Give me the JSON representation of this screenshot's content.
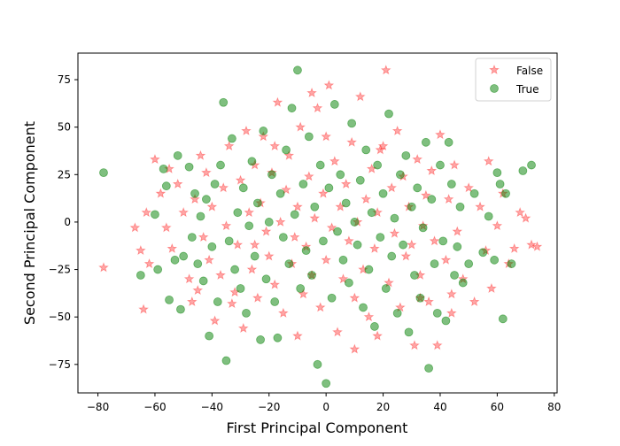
{
  "chart_data": {
    "type": "scatter",
    "xlabel": "First Principal Component",
    "ylabel": "Second Principal Component",
    "xlim": [
      -87,
      81
    ],
    "ylim": [
      -90,
      89
    ],
    "x_ticks": [
      -80,
      -60,
      -40,
      -20,
      0,
      20,
      40,
      60,
      80
    ],
    "y_ticks": [
      -75,
      -50,
      -25,
      0,
      25,
      50,
      75
    ],
    "legend_position": "top-right",
    "series": [
      {
        "name": "False",
        "marker": "star",
        "color": "#ff0000",
        "alpha": 0.35,
        "points": [
          [
            -78,
            -24
          ],
          [
            -67,
            -3
          ],
          [
            -65,
            -15
          ],
          [
            -64,
            -46
          ],
          [
            -62,
            -22
          ],
          [
            -60,
            33
          ],
          [
            -58,
            15
          ],
          [
            -56,
            -3
          ],
          [
            -54,
            -14
          ],
          [
            -52,
            20
          ],
          [
            -50,
            5
          ],
          [
            -48,
            -30
          ],
          [
            -46,
            12
          ],
          [
            -45,
            -36
          ],
          [
            -44,
            35
          ],
          [
            -43,
            -8
          ],
          [
            -42,
            26
          ],
          [
            -41,
            -20
          ],
          [
            -40,
            8
          ],
          [
            -39,
            -52
          ],
          [
            -37,
            -28
          ],
          [
            -36,
            18
          ],
          [
            -35,
            -2
          ],
          [
            -34,
            40
          ],
          [
            -33,
            -43
          ],
          [
            -31,
            -12
          ],
          [
            -30,
            22
          ],
          [
            -29,
            -56
          ],
          [
            -27,
            5
          ],
          [
            -26,
            -25
          ],
          [
            -25,
            30
          ],
          [
            -24,
            -40
          ],
          [
            -23,
            10
          ],
          [
            -22,
            45
          ],
          [
            -21,
            -5
          ],
          [
            -20,
            -18
          ],
          [
            -19,
            26
          ],
          [
            -18,
            -33
          ],
          [
            -17,
            63
          ],
          [
            -16,
            0
          ],
          [
            -15,
            -48
          ],
          [
            -14,
            17
          ],
          [
            -13,
            35
          ],
          [
            -12,
            -22
          ],
          [
            -11,
            -8
          ],
          [
            -10,
            8
          ],
          [
            -9,
            50
          ],
          [
            -8,
            -38
          ],
          [
            -7,
            -13
          ],
          [
            -6,
            24
          ],
          [
            -5,
            -28
          ],
          [
            -4,
            2
          ],
          [
            -3,
            60
          ],
          [
            -2,
            -45
          ],
          [
            -1,
            15
          ],
          [
            0,
            -20
          ],
          [
            1,
            72
          ],
          [
            2,
            -3
          ],
          [
            3,
            32
          ],
          [
            4,
            -58
          ],
          [
            5,
            8
          ],
          [
            6,
            -30
          ],
          [
            7,
            20
          ],
          [
            8,
            -10
          ],
          [
            9,
            42
          ],
          [
            10,
            -40
          ],
          [
            11,
            0
          ],
          [
            12,
            66
          ],
          [
            13,
            -25
          ],
          [
            14,
            12
          ],
          [
            15,
            -50
          ],
          [
            16,
            28
          ],
          [
            17,
            -14
          ],
          [
            18,
            5
          ],
          [
            19,
            38
          ],
          [
            21,
            80
          ],
          [
            22,
            -32
          ],
          [
            23,
            18
          ],
          [
            24,
            -6
          ],
          [
            25,
            48
          ],
          [
            26,
            -45
          ],
          [
            27,
            24
          ],
          [
            28,
            -18
          ],
          [
            29,
            8
          ],
          [
            31,
            -65
          ],
          [
            32,
            33
          ],
          [
            33,
            -28
          ],
          [
            34,
            -2
          ],
          [
            35,
            14
          ],
          [
            36,
            -42
          ],
          [
            37,
            27
          ],
          [
            38,
            -10
          ],
          [
            39,
            -65
          ],
          [
            40,
            46
          ],
          [
            42,
            -20
          ],
          [
            43,
            12
          ],
          [
            44,
            -48
          ],
          [
            45,
            30
          ],
          [
            46,
            -5
          ],
          [
            48,
            -30
          ],
          [
            50,
            18
          ],
          [
            52,
            -42
          ],
          [
            54,
            8
          ],
          [
            56,
            -15
          ],
          [
            58,
            -35
          ],
          [
            60,
            -2
          ],
          [
            62,
            15
          ],
          [
            64,
            -22
          ],
          [
            66,
            -14
          ],
          [
            68,
            5
          ],
          [
            70,
            2
          ],
          [
            72,
            -12
          ],
          [
            74,
            -13
          ],
          [
            -63,
            5
          ],
          [
            -47,
            -42
          ],
          [
            -32,
            -37
          ],
          [
            -28,
            48
          ],
          [
            -18,
            40
          ],
          [
            0,
            45
          ],
          [
            18,
            -60
          ],
          [
            30,
            -12
          ],
          [
            44,
            -38
          ],
          [
            57,
            32
          ],
          [
            -10,
            -60
          ],
          [
            10,
            -67
          ],
          [
            -55,
            28
          ],
          [
            20,
            40
          ],
          [
            -25,
            -12
          ],
          [
            33,
            -40
          ],
          [
            -5,
            68
          ]
        ]
      },
      {
        "name": "True",
        "marker": "circle",
        "color": "#008000",
        "alpha": 0.5,
        "points": [
          [
            -78,
            26
          ],
          [
            -65,
            -28
          ],
          [
            -60,
            4
          ],
          [
            -59,
            -25
          ],
          [
            -57,
            28
          ],
          [
            -56,
            19
          ],
          [
            -55,
            -41
          ],
          [
            -53,
            -20
          ],
          [
            -52,
            35
          ],
          [
            -51,
            -46
          ],
          [
            -50,
            -18
          ],
          [
            -48,
            29
          ],
          [
            -47,
            -8
          ],
          [
            -46,
            15
          ],
          [
            -45,
            -22
          ],
          [
            -44,
            3
          ],
          [
            -43,
            -31
          ],
          [
            -42,
            12
          ],
          [
            -40,
            -13
          ],
          [
            -39,
            20
          ],
          [
            -38,
            -42
          ],
          [
            -37,
            30
          ],
          [
            -36,
            63
          ],
          [
            -35,
            -73
          ],
          [
            -34,
            -10
          ],
          [
            -33,
            44
          ],
          [
            -32,
            -25
          ],
          [
            -31,
            5
          ],
          [
            -30,
            -35
          ],
          [
            -29,
            18
          ],
          [
            -28,
            -48
          ],
          [
            -27,
            -2
          ],
          [
            -26,
            32
          ],
          [
            -25,
            -18
          ],
          [
            -24,
            10
          ],
          [
            -23,
            -62
          ],
          [
            -22,
            48
          ],
          [
            -21,
            -30
          ],
          [
            -20,
            0
          ],
          [
            -19,
            25
          ],
          [
            -18,
            -42
          ],
          [
            -17,
            -61
          ],
          [
            -16,
            15
          ],
          [
            -15,
            -8
          ],
          [
            -14,
            38
          ],
          [
            -13,
            -22
          ],
          [
            -12,
            60
          ],
          [
            -11,
            4
          ],
          [
            -10,
            80
          ],
          [
            -9,
            -35
          ],
          [
            -8,
            20
          ],
          [
            -7,
            -15
          ],
          [
            -6,
            45
          ],
          [
            -5,
            -28
          ],
          [
            -4,
            8
          ],
          [
            -3,
            -75
          ],
          [
            -2,
            30
          ],
          [
            -1,
            -10
          ],
          [
            0,
            -85
          ],
          [
            1,
            18
          ],
          [
            2,
            -40
          ],
          [
            3,
            62
          ],
          [
            4,
            -5
          ],
          [
            5,
            25
          ],
          [
            6,
            -20
          ],
          [
            7,
            10
          ],
          [
            8,
            -32
          ],
          [
            9,
            52
          ],
          [
            10,
            0
          ],
          [
            11,
            -12
          ],
          [
            12,
            22
          ],
          [
            13,
            -45
          ],
          [
            14,
            38
          ],
          [
            15,
            -25
          ],
          [
            16,
            5
          ],
          [
            17,
            -55
          ],
          [
            18,
            30
          ],
          [
            19,
            -8
          ],
          [
            20,
            15
          ],
          [
            21,
            -35
          ],
          [
            22,
            57
          ],
          [
            23,
            -18
          ],
          [
            24,
            2
          ],
          [
            25,
            -48
          ],
          [
            26,
            25
          ],
          [
            27,
            -12
          ],
          [
            28,
            35
          ],
          [
            29,
            -58
          ],
          [
            30,
            8
          ],
          [
            31,
            -28
          ],
          [
            32,
            18
          ],
          [
            33,
            -40
          ],
          [
            34,
            -3
          ],
          [
            35,
            42
          ],
          [
            36,
            -77
          ],
          [
            37,
            12
          ],
          [
            38,
            -22
          ],
          [
            39,
            -48
          ],
          [
            40,
            30
          ],
          [
            41,
            -10
          ],
          [
            42,
            -52
          ],
          [
            43,
            42
          ],
          [
            44,
            20
          ],
          [
            45,
            -28
          ],
          [
            46,
            -13
          ],
          [
            47,
            8
          ],
          [
            48,
            -32
          ],
          [
            50,
            -22
          ],
          [
            52,
            15
          ],
          [
            55,
            -16
          ],
          [
            57,
            3
          ],
          [
            59,
            -20
          ],
          [
            60,
            26
          ],
          [
            61,
            20
          ],
          [
            62,
            -51
          ],
          [
            63,
            15
          ],
          [
            65,
            -22
          ],
          [
            69,
            27
          ],
          [
            72,
            30
          ],
          [
            -41,
            -60
          ]
        ]
      }
    ]
  }
}
